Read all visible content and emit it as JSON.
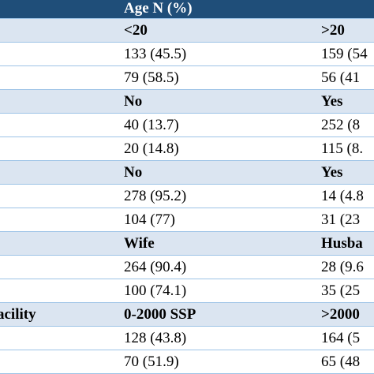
{
  "table": {
    "header": "Age N (%)",
    "rows": [
      {
        "style": "subheader",
        "cells": [
          "<20",
          ">20"
        ]
      },
      {
        "style": "data",
        "cells": [
          "133 (45.5)",
          "159 (54"
        ]
      },
      {
        "style": "data",
        "cells": [
          "79 (58.5)",
          "56 (41"
        ]
      },
      {
        "style": "subheader",
        "cells": [
          "No",
          "Yes"
        ]
      },
      {
        "style": "data",
        "cells": [
          "40 (13.7)",
          "252 (8"
        ]
      },
      {
        "style": "data",
        "cells": [
          "20 (14.8)",
          "115 (8."
        ]
      },
      {
        "style": "subheader",
        "cells": [
          "No",
          "Yes"
        ]
      },
      {
        "style": "data",
        "cells": [
          "278 (95.2)",
          "14 (4.8"
        ]
      },
      {
        "style": "data",
        "cells": [
          "104 (77)",
          "31 (23"
        ]
      },
      {
        "style": "subheader",
        "cells": [
          "Wife",
          "Husba"
        ]
      },
      {
        "style": "data",
        "cells": [
          "264 (90.4)",
          "28 (9.6"
        ]
      },
      {
        "style": "data",
        "cells": [
          "100 (74.1)",
          "35 (25"
        ]
      },
      {
        "style": "subheader",
        "label": "acility",
        "cells": [
          "0-2000 SSP",
          ">2000"
        ]
      },
      {
        "style": "data",
        "cells": [
          "128 (43.8)",
          "164 (5"
        ]
      },
      {
        "style": "data",
        "cells": [
          "70 (51.9)",
          "65 (48"
        ]
      }
    ]
  }
}
